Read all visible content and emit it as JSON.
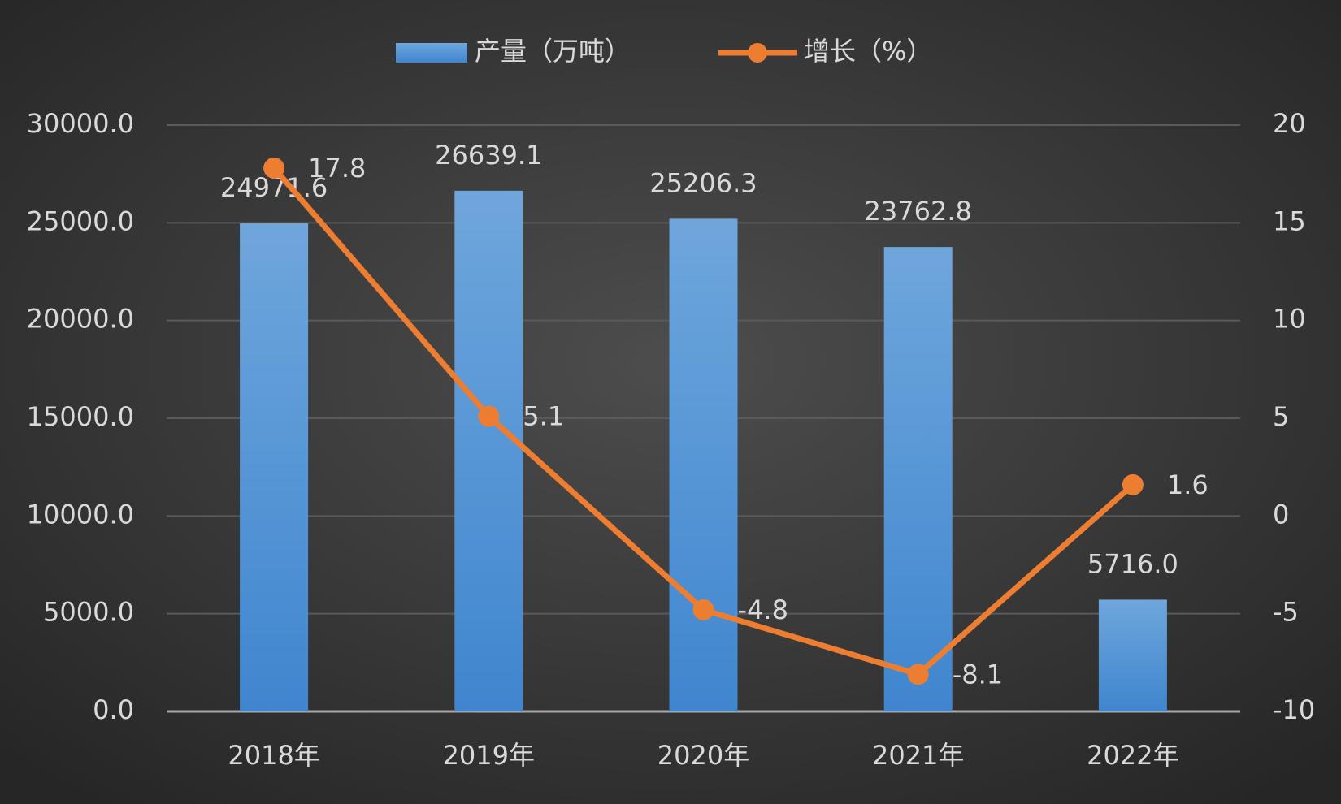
{
  "chart_data": {
    "type": "bar",
    "categories": [
      "2018年",
      "2019年",
      "2020年",
      "2021年",
      "2022年"
    ],
    "series": [
      {
        "name": "产量（万吨）",
        "type": "bar",
        "color": "#5b9bd5",
        "values": [
          24971.6,
          26639.1,
          25206.3,
          23762.8,
          5716.0
        ],
        "value_labels": [
          "24971.6",
          "26639.1",
          "25206.3",
          "23762.8",
          "5716.0"
        ]
      },
      {
        "name": "增长（%）",
        "type": "line",
        "axis": "y2",
        "color": "#ed7d31",
        "values": [
          17.8,
          5.1,
          -4.8,
          -8.1,
          1.6
        ]
      }
    ],
    "ylim": [
      0,
      30000
    ],
    "yticks": [
      {
        "value": 0,
        "label": "0.0"
      },
      {
        "value": 5000,
        "label": "5000.0"
      },
      {
        "value": 10000,
        "label": "10000.0"
      },
      {
        "value": 15000,
        "label": "15000.0"
      },
      {
        "value": 20000,
        "label": "20000.0"
      },
      {
        "value": 25000,
        "label": "25000.0"
      },
      {
        "value": 30000,
        "label": "30000.0"
      }
    ],
    "y2lim": [
      -10,
      20
    ],
    "y2ticks": [
      -10,
      -5,
      0,
      5,
      10,
      15,
      20
    ],
    "grid": true,
    "legend": "top"
  }
}
